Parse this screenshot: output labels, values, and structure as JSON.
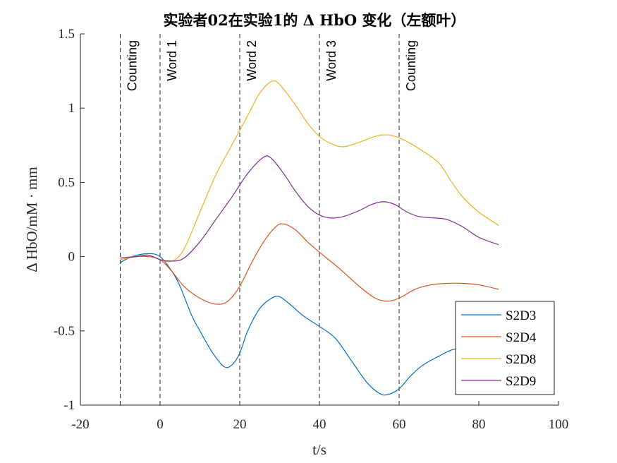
{
  "chart_data": {
    "type": "line",
    "title": "实验者02在实验1的 Δ HbO 变化（左额叶）",
    "xlabel": "t/s",
    "ylabel": "Δ HbO/mM · mm",
    "xlim": [
      -20,
      100
    ],
    "ylim": [
      -1,
      1.5
    ],
    "xticks": [
      -20,
      0,
      20,
      40,
      60,
      80,
      100
    ],
    "yticks": [
      -1,
      -0.5,
      0,
      0.5,
      1,
      1.5
    ],
    "xtick_labels": [
      "-20",
      "0",
      "20",
      "40",
      "60",
      "80",
      "100"
    ],
    "ytick_labels": [
      "-1",
      "-0.5",
      "0",
      "0.5",
      "1",
      "1.5"
    ],
    "grid": false,
    "legend_position": "bottom-right",
    "events": [
      {
        "x": -10,
        "label": "Counting"
      },
      {
        "x": 0,
        "label": "Word 1"
      },
      {
        "x": 20,
        "label": "Word 2"
      },
      {
        "x": 40,
        "label": "Word 3"
      },
      {
        "x": 60,
        "label": "Counting"
      }
    ],
    "series": [
      {
        "name": "S2D3",
        "color": "#0072BD",
        "points": [
          [
            -10,
            -0.04
          ],
          [
            -7,
            0
          ],
          [
            -3,
            0.02
          ],
          [
            0,
            0
          ],
          [
            3,
            -0.1
          ],
          [
            5,
            -0.2
          ],
          [
            8,
            -0.4
          ],
          [
            10,
            -0.5
          ],
          [
            13,
            -0.64
          ],
          [
            16,
            -0.74
          ],
          [
            18,
            -0.73
          ],
          [
            20,
            -0.65
          ],
          [
            22,
            -0.5
          ],
          [
            25,
            -0.35
          ],
          [
            28,
            -0.28
          ],
          [
            30,
            -0.27
          ],
          [
            33,
            -0.33
          ],
          [
            36,
            -0.4
          ],
          [
            40,
            -0.47
          ],
          [
            44,
            -0.55
          ],
          [
            48,
            -0.7
          ],
          [
            52,
            -0.85
          ],
          [
            55,
            -0.92
          ],
          [
            57,
            -0.93
          ],
          [
            60,
            -0.89
          ],
          [
            63,
            -0.8
          ],
          [
            66,
            -0.73
          ],
          [
            70,
            -0.67
          ],
          [
            73,
            -0.63
          ],
          [
            75,
            -0.62
          ]
        ]
      },
      {
        "name": "S2D4",
        "color": "#D95319",
        "points": [
          [
            -10,
            -0.01
          ],
          [
            -6,
            0
          ],
          [
            -3,
            0
          ],
          [
            0,
            -0.02
          ],
          [
            3,
            -0.1
          ],
          [
            6,
            -0.2
          ],
          [
            10,
            -0.28
          ],
          [
            14,
            -0.32
          ],
          [
            17,
            -0.3
          ],
          [
            20,
            -0.2
          ],
          [
            23,
            -0.04
          ],
          [
            26,
            0.1
          ],
          [
            29,
            0.2
          ],
          [
            31,
            0.22
          ],
          [
            34,
            0.18
          ],
          [
            37,
            0.1
          ],
          [
            40,
            0.03
          ],
          [
            45,
            -0.08
          ],
          [
            50,
            -0.2
          ],
          [
            54,
            -0.28
          ],
          [
            57,
            -0.3
          ],
          [
            60,
            -0.28
          ],
          [
            64,
            -0.22
          ],
          [
            68,
            -0.19
          ],
          [
            72,
            -0.18
          ],
          [
            76,
            -0.18
          ],
          [
            80,
            -0.19
          ],
          [
            85,
            -0.22
          ]
        ]
      },
      {
        "name": "S2D8",
        "color": "#EDB120",
        "points": [
          [
            -10,
            -0.02
          ],
          [
            -6,
            0
          ],
          [
            -3,
            0.01
          ],
          [
            0,
            -0.02
          ],
          [
            3,
            -0.03
          ],
          [
            6,
            0.05
          ],
          [
            10,
            0.3
          ],
          [
            14,
            0.55
          ],
          [
            18,
            0.75
          ],
          [
            22,
            0.95
          ],
          [
            25,
            1.1
          ],
          [
            28,
            1.18
          ],
          [
            30,
            1.16
          ],
          [
            34,
            1.02
          ],
          [
            37,
            0.9
          ],
          [
            40,
            0.81
          ],
          [
            43,
            0.76
          ],
          [
            46,
            0.74
          ],
          [
            50,
            0.77
          ],
          [
            54,
            0.81
          ],
          [
            57,
            0.82
          ],
          [
            60,
            0.8
          ],
          [
            63,
            0.76
          ],
          [
            66,
            0.71
          ],
          [
            70,
            0.63
          ],
          [
            73,
            0.51
          ],
          [
            76,
            0.4
          ],
          [
            80,
            0.3
          ],
          [
            85,
            0.21
          ]
        ]
      },
      {
        "name": "S2D9",
        "color": "#7E2F8E",
        "points": [
          [
            -10,
            -0.01
          ],
          [
            -6,
            0
          ],
          [
            -3,
            0.01
          ],
          [
            0,
            -0.02
          ],
          [
            3,
            -0.03
          ],
          [
            6,
            -0.01
          ],
          [
            10,
            0.1
          ],
          [
            14,
            0.25
          ],
          [
            18,
            0.4
          ],
          [
            22,
            0.56
          ],
          [
            26,
            0.67
          ],
          [
            28,
            0.66
          ],
          [
            31,
            0.56
          ],
          [
            34,
            0.44
          ],
          [
            37,
            0.34
          ],
          [
            40,
            0.28
          ],
          [
            43,
            0.26
          ],
          [
            46,
            0.27
          ],
          [
            50,
            0.31
          ],
          [
            53,
            0.35
          ],
          [
            56,
            0.37
          ],
          [
            59,
            0.35
          ],
          [
            62,
            0.3
          ],
          [
            65,
            0.27
          ],
          [
            69,
            0.26
          ],
          [
            72,
            0.25
          ],
          [
            76,
            0.2
          ],
          [
            80,
            0.13
          ],
          [
            85,
            0.08
          ]
        ]
      }
    ]
  }
}
